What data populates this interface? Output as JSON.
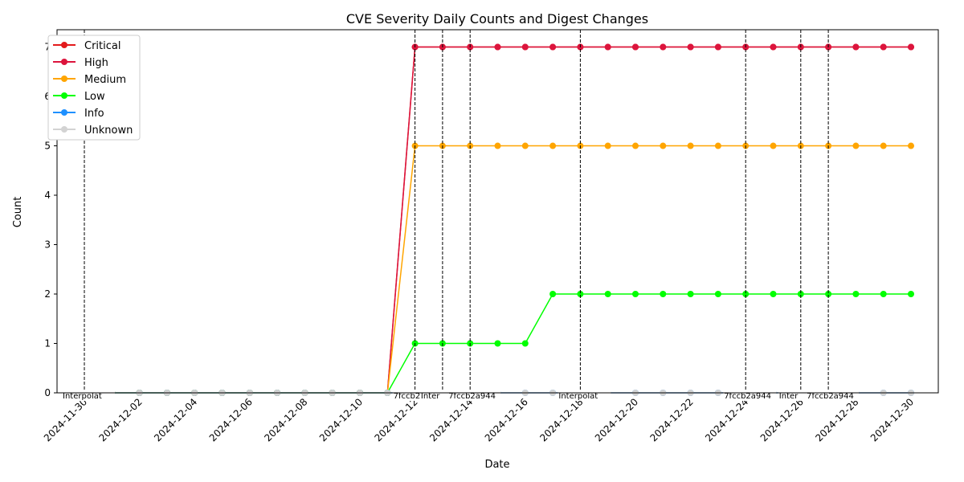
{
  "chart_data": {
    "type": "line",
    "title": "CVE Severity Daily Counts and Digest Changes",
    "xlabel": "Date",
    "ylabel": "Count",
    "x": [
      "2024-11-30",
      "2024-12-01",
      "2024-12-02",
      "2024-12-03",
      "2024-12-04",
      "2024-12-05",
      "2024-12-06",
      "2024-12-07",
      "2024-12-08",
      "2024-12-09",
      "2024-12-10",
      "2024-12-11",
      "2024-12-12",
      "2024-12-13",
      "2024-12-14",
      "2024-12-15",
      "2024-12-16",
      "2024-12-17",
      "2024-12-18",
      "2024-12-19",
      "2024-12-20",
      "2024-12-21",
      "2024-12-22",
      "2024-12-23",
      "2024-12-24",
      "2024-12-25",
      "2024-12-26",
      "2024-12-27",
      "2024-12-28",
      "2024-12-29",
      "2024-12-30"
    ],
    "x_ticks": [
      "2024-11-30",
      "2024-12-02",
      "2024-12-04",
      "2024-12-06",
      "2024-12-08",
      "2024-12-10",
      "2024-12-12",
      "2024-12-14",
      "2024-12-16",
      "2024-12-18",
      "2024-12-20",
      "2024-12-22",
      "2024-12-24",
      "2024-12-26",
      "2024-12-28",
      "2024-12-30"
    ],
    "y_ticks": [
      0,
      1,
      2,
      3,
      4,
      5,
      6,
      7
    ],
    "ylim": [
      0,
      7.35
    ],
    "grid": false,
    "legend_position": "top-left",
    "series": [
      {
        "name": "Critical",
        "color": "#e31a1c",
        "values": [
          0,
          0,
          0,
          0,
          0,
          0,
          0,
          0,
          0,
          0,
          0,
          0,
          7,
          7,
          7,
          7,
          7,
          7,
          7,
          7,
          7,
          7,
          7,
          7,
          7,
          7,
          7,
          7,
          7,
          7,
          7
        ]
      },
      {
        "name": "High",
        "color": "#dc143c",
        "values": [
          0,
          0,
          0,
          0,
          0,
          0,
          0,
          0,
          0,
          0,
          0,
          0,
          7,
          7,
          7,
          7,
          7,
          7,
          7,
          7,
          7,
          7,
          7,
          7,
          7,
          7,
          7,
          7,
          7,
          7,
          7
        ]
      },
      {
        "name": "Medium",
        "color": "#ffa500",
        "values": [
          0,
          0,
          0,
          0,
          0,
          0,
          0,
          0,
          0,
          0,
          0,
          0,
          5,
          5,
          5,
          5,
          5,
          5,
          5,
          5,
          5,
          5,
          5,
          5,
          5,
          5,
          5,
          5,
          5,
          5,
          5
        ]
      },
      {
        "name": "Low",
        "color": "#00ff00",
        "values": [
          0,
          0,
          0,
          0,
          0,
          0,
          0,
          0,
          0,
          0,
          0,
          0,
          1,
          1,
          1,
          1,
          1,
          2,
          2,
          2,
          2,
          2,
          2,
          2,
          2,
          2,
          2,
          2,
          2,
          2,
          2
        ]
      },
      {
        "name": "Info",
        "color": "#1e90ff",
        "values": [
          0,
          0,
          0,
          0,
          0,
          0,
          0,
          0,
          0,
          0,
          0,
          0,
          0,
          0,
          0,
          0,
          0,
          0,
          0,
          0,
          0,
          0,
          0,
          0,
          0,
          0,
          0,
          0,
          0,
          0,
          0
        ]
      },
      {
        "name": "Unknown",
        "color": "#d3d3d3",
        "values": [
          0,
          0,
          0,
          0,
          0,
          0,
          0,
          0,
          0,
          0,
          0,
          0,
          0,
          0,
          0,
          0,
          0,
          0,
          0,
          0,
          0,
          0,
          0,
          0,
          0,
          0,
          0,
          0,
          0,
          0,
          0
        ]
      }
    ],
    "digest_changes": [
      {
        "date": "2024-11-30",
        "label": "Interpolat"
      },
      {
        "date": "2024-12-12",
        "label": "7fccb2"
      },
      {
        "date": "2024-12-13",
        "label": "Inter"
      },
      {
        "date": "2024-12-14",
        "label": "7fccb2a944"
      },
      {
        "date": "2024-12-18",
        "label": "Interpolat"
      },
      {
        "date": "2024-12-24",
        "label": "7fccb2a944"
      },
      {
        "date": "2024-12-26",
        "label": "Inter"
      },
      {
        "date": "2024-12-27",
        "label": "7fccb2a944"
      }
    ]
  }
}
